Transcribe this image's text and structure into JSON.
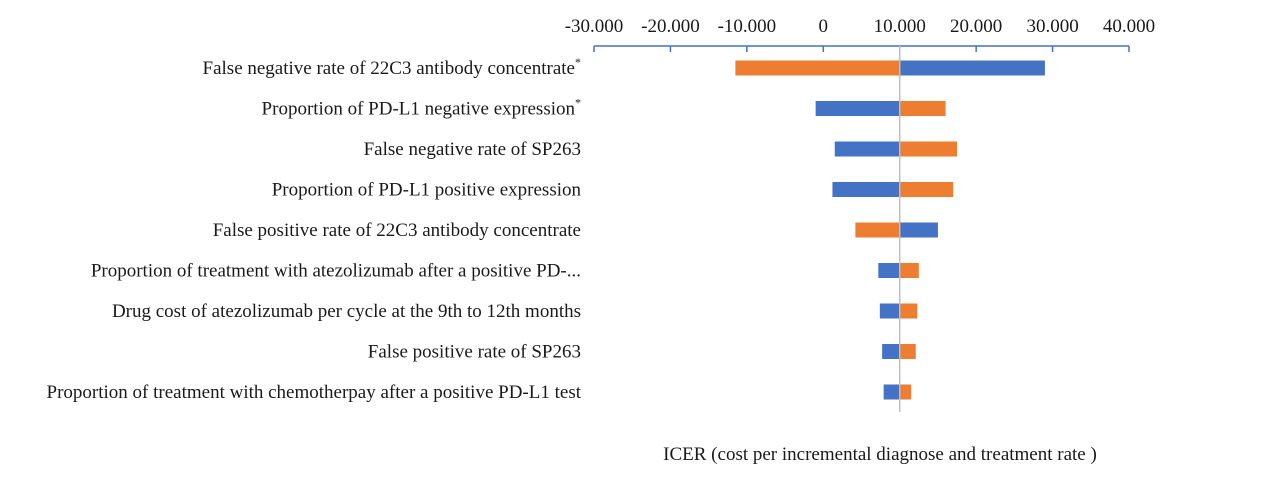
{
  "chart_data": {
    "type": "bar",
    "orientation": "horizontal",
    "subtype": "tornado",
    "title": "",
    "xlabel": "ICER (cost per incremental diagnose and treatment rate )",
    "ylabel": "",
    "xlim": [
      -30000,
      40000
    ],
    "baseline": 10000,
    "tick_values": [
      -30000,
      -20000,
      -10000,
      0,
      10000,
      20000,
      30000,
      40000
    ],
    "tick_labels": [
      "-30.000",
      "-20.000",
      "-10.000",
      "0",
      "10.000",
      "20.000",
      "30.000",
      "40.000"
    ],
    "axis_position": "top",
    "grid": false,
    "legend": "none",
    "colors": {
      "blue": "#4472C4",
      "orange": "#ED7D31",
      "axis": "#4472C4",
      "baseline": "#BFBFBF"
    },
    "categories": [
      {
        "label": "False negative rate of 22C3 antibody concentrate",
        "sup": "*",
        "low": -11500,
        "high": 29000,
        "low_color": "orange",
        "high_color": "blue"
      },
      {
        "label": "Proportion of PD-L1 negative expression",
        "sup": "*",
        "low": -1000,
        "high": 16000,
        "low_color": "blue",
        "high_color": "orange"
      },
      {
        "label": "False negative rate of SP263",
        "sup": "",
        "low": 1500,
        "high": 17500,
        "low_color": "blue",
        "high_color": "orange"
      },
      {
        "label": "Proportion of PD-L1 positive expression",
        "sup": "",
        "low": 1200,
        "high": 17000,
        "low_color": "blue",
        "high_color": "orange"
      },
      {
        "label": "False positive rate of 22C3 antibody concentrate",
        "sup": "",
        "low": 4200,
        "high": 15000,
        "low_color": "orange",
        "high_color": "blue"
      },
      {
        "label": "Proportion of treatment with atezolizumab after a positive PD-...",
        "sup": "",
        "low": 7200,
        "high": 12500,
        "low_color": "blue",
        "high_color": "orange"
      },
      {
        "label": "Drug cost of atezolizumab per cycle at the 9th to 12th months",
        "sup": "",
        "low": 7400,
        "high": 12300,
        "low_color": "blue",
        "high_color": "orange"
      },
      {
        "label": "False positive rate of SP263",
        "sup": "",
        "low": 7700,
        "high": 12100,
        "low_color": "blue",
        "high_color": "orange"
      },
      {
        "label": "Proportion of treatment with chemotherpay after a positive PD-L1 test",
        "sup": "",
        "low": 7900,
        "high": 11500,
        "low_color": "blue",
        "high_color": "orange"
      }
    ]
  }
}
